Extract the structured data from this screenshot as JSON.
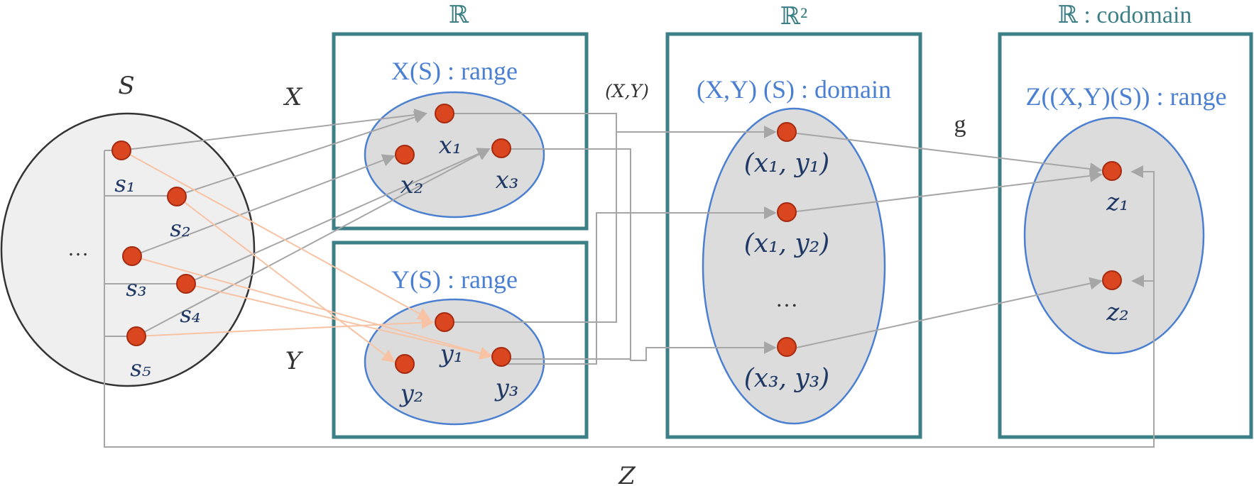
{
  "sets": {
    "S": {
      "label": "S",
      "dots": [
        "…"
      ]
    },
    "R1": {
      "header": "ℝ",
      "inner": "X(S) : range"
    },
    "R_y": {
      "inner": "Y(S) : range"
    },
    "R2": {
      "header": "ℝ²",
      "inner": "(X,Y) (S) : domain"
    },
    "R3": {
      "header": "ℝ : codomain",
      "inner": "Z((X,Y)(S)) : range"
    }
  },
  "maps": {
    "X": "X",
    "Y": "Y",
    "XY": "(X,Y)",
    "g": "g",
    "Z": "Z"
  },
  "points": {
    "s": [
      "s₁",
      "s₂",
      "s₃",
      "s₄",
      "s₅"
    ],
    "x": [
      "x₁",
      "x₂",
      "x₃"
    ],
    "y": [
      "y₁",
      "y₂",
      "y₃"
    ],
    "pairs": [
      "(x₁, y₁)",
      "(x₁, y₂)",
      "(x₃, y₃)"
    ],
    "pairs_dots": "…",
    "z": [
      "z₁",
      "z₂"
    ]
  },
  "colors": {
    "box": "#3d7f86",
    "ellipse_border": "#4a7fd1",
    "point": "#d9461f",
    "arrow_gray": "#a6a6a6",
    "arrow_orange": "#f8c3a4"
  }
}
